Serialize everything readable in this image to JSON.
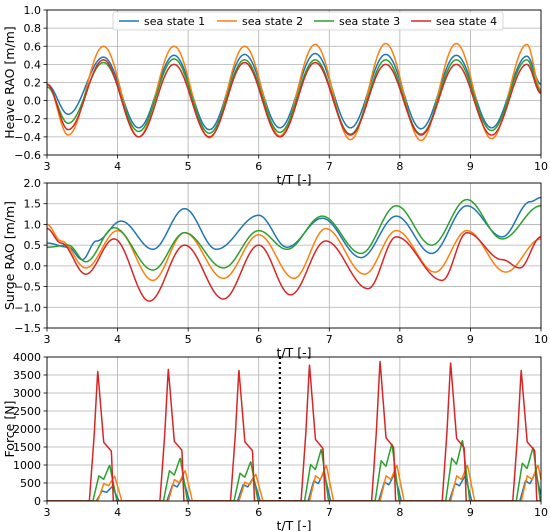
{
  "colors": {
    "sea_state_1": "#1f77b4",
    "sea_state_2": "#ff7f0e",
    "sea_state_3": "#2ca02c",
    "sea_state_4": "#d62728",
    "grid": "#b0b0b0",
    "marker_line": "#000000"
  },
  "chart_data": [
    {
      "type": "line",
      "ylabel": "Heave RAO [m/m]",
      "xlabel": "t/T [-]",
      "xlim": [
        3,
        10
      ],
      "ylim": [
        -0.6,
        1.0
      ],
      "xticks": [
        "3",
        "4",
        "5",
        "6",
        "7",
        "8",
        "9",
        "10"
      ],
      "yticks": [
        "−0.6",
        "−0.4",
        "−0.2",
        "0.0",
        "0.2",
        "0.4",
        "0.6",
        "0.8",
        "1.0"
      ],
      "grid": true,
      "legend": {
        "placement": "top-center",
        "columns": 4
      },
      "peak_times": [
        3.8,
        4.8,
        5.8,
        6.8,
        7.8,
        8.8,
        9.8
      ],
      "trough_times": [
        3.3,
        4.3,
        5.3,
        6.3,
        7.3,
        8.3,
        9.3
      ],
      "series": [
        {
          "name": "sea state 1",
          "start": 0.18,
          "end": 0.18,
          "peaks": [
            0.48,
            0.5,
            0.51,
            0.52,
            0.51,
            0.5,
            0.49
          ],
          "troughs": [
            -0.15,
            -0.3,
            -0.32,
            -0.3,
            -0.3,
            -0.31,
            -0.3
          ]
        },
        {
          "name": "sea state 2",
          "start": 0.18,
          "end": 0.12,
          "peaks": [
            0.6,
            0.6,
            0.6,
            0.62,
            0.63,
            0.63,
            0.62
          ],
          "troughs": [
            -0.38,
            -0.4,
            -0.41,
            -0.39,
            -0.43,
            -0.44,
            -0.42
          ]
        },
        {
          "name": "sea state 3",
          "start": 0.15,
          "end": 0.1,
          "peaks": [
            0.42,
            0.46,
            0.45,
            0.45,
            0.45,
            0.45,
            0.45
          ],
          "troughs": [
            -0.25,
            -0.34,
            -0.36,
            -0.35,
            -0.37,
            -0.37,
            -0.33
          ]
        },
        {
          "name": "sea state 4",
          "start": 0.18,
          "end": 0.08,
          "peaks": [
            0.45,
            0.4,
            0.42,
            0.42,
            0.4,
            0.4,
            0.4
          ],
          "troughs": [
            -0.32,
            -0.4,
            -0.4,
            -0.4,
            -0.38,
            -0.38,
            -0.38
          ]
        }
      ]
    },
    {
      "type": "line",
      "ylabel": "Surge RAO [m/m]",
      "xlabel": "t/T [-]",
      "xlim": [
        3,
        10
      ],
      "ylim": [
        -1.5,
        2.0
      ],
      "xticks": [
        "3",
        "4",
        "5",
        "6",
        "7",
        "8",
        "9",
        "10"
      ],
      "yticks": [
        "−1.5",
        "−1.0",
        "−0.5",
        "0.0",
        "0.5",
        "1.0",
        "1.5",
        "2.0"
      ],
      "grid": true,
      "series": [
        {
          "name": "sea state 1",
          "points": [
            [
              3.0,
              0.55
            ],
            [
              3.3,
              0.45
            ],
            [
              3.5,
              0.15
            ],
            [
              3.7,
              0.6
            ],
            [
              4.05,
              1.08
            ],
            [
              4.5,
              0.4
            ],
            [
              4.95,
              1.38
            ],
            [
              5.4,
              0.4
            ],
            [
              6.0,
              1.22
            ],
            [
              6.4,
              0.45
            ],
            [
              6.9,
              1.15
            ],
            [
              7.45,
              0.2
            ],
            [
              7.95,
              1.2
            ],
            [
              8.45,
              0.3
            ],
            [
              8.95,
              1.45
            ],
            [
              9.45,
              0.7
            ],
            [
              9.85,
              1.55
            ],
            [
              10.0,
              1.65
            ]
          ]
        },
        {
          "name": "sea state 2",
          "points": [
            [
              3.0,
              1.0
            ],
            [
              3.2,
              0.6
            ],
            [
              3.55,
              -0.05
            ],
            [
              4.0,
              0.85
            ],
            [
              4.5,
              -0.35
            ],
            [
              4.95,
              0.8
            ],
            [
              5.5,
              -0.3
            ],
            [
              6.0,
              0.75
            ],
            [
              6.5,
              -0.3
            ],
            [
              6.95,
              0.9
            ],
            [
              7.5,
              -0.2
            ],
            [
              7.95,
              0.85
            ],
            [
              8.5,
              -0.15
            ],
            [
              8.95,
              0.85
            ],
            [
              9.5,
              -0.15
            ],
            [
              10.0,
              0.65
            ]
          ]
        },
        {
          "name": "sea state 3",
          "points": [
            [
              3.0,
              0.45
            ],
            [
              3.3,
              0.5
            ],
            [
              3.55,
              0.1
            ],
            [
              3.95,
              0.92
            ],
            [
              4.5,
              -0.1
            ],
            [
              4.95,
              0.8
            ],
            [
              5.5,
              -0.05
            ],
            [
              6.0,
              0.85
            ],
            [
              6.4,
              0.4
            ],
            [
              6.9,
              1.2
            ],
            [
              7.45,
              0.3
            ],
            [
              7.95,
              1.45
            ],
            [
              8.45,
              0.5
            ],
            [
              8.95,
              1.6
            ],
            [
              9.45,
              0.65
            ],
            [
              10.0,
              1.45
            ]
          ]
        },
        {
          "name": "sea state 4",
          "points": [
            [
              3.0,
              0.9
            ],
            [
              3.2,
              0.55
            ],
            [
              3.55,
              -0.2
            ],
            [
              3.95,
              0.65
            ],
            [
              4.45,
              -0.85
            ],
            [
              4.95,
              0.5
            ],
            [
              5.5,
              -0.8
            ],
            [
              6.0,
              0.5
            ],
            [
              6.45,
              -0.7
            ],
            [
              6.95,
              0.6
            ],
            [
              7.55,
              -0.55
            ],
            [
              7.95,
              0.7
            ],
            [
              8.6,
              -0.35
            ],
            [
              8.95,
              0.8
            ],
            [
              9.45,
              0.15
            ],
            [
              9.7,
              -0.05
            ],
            [
              10.0,
              0.7
            ]
          ]
        }
      ]
    },
    {
      "type": "line",
      "ylabel": "Force [N]",
      "xlabel": "t/T [-]",
      "xlim": [
        3,
        10
      ],
      "ylim": [
        0,
        4000
      ],
      "xticks": [
        "3",
        "4",
        "5",
        "6",
        "7",
        "8",
        "9",
        "10"
      ],
      "yticks": [
        "0",
        "500",
        "1000",
        "1500",
        "2000",
        "2500",
        "3000",
        "3500",
        "4000"
      ],
      "grid": true,
      "vline_x": 6.3,
      "impact_start_times": [
        3.6,
        4.6,
        5.6,
        6.6,
        7.6,
        8.6,
        9.6
      ],
      "series": [
        {
          "name": "sea state 1",
          "peaks": [
            400,
            650,
            650,
            800,
            750,
            700,
            800
          ]
        },
        {
          "name": "sea state 2",
          "peaks": [
            700,
            850,
            750,
            1000,
            1000,
            1000,
            1000
          ]
        },
        {
          "name": "sea state 3",
          "peaks": [
            1000,
            1200,
            1100,
            1450,
            1600,
            1700,
            1500
          ]
        },
        {
          "name": "sea state 4",
          "peaks": [
            3620,
            3680,
            3650,
            3800,
            3900,
            3860,
            3650
          ]
        }
      ]
    }
  ]
}
